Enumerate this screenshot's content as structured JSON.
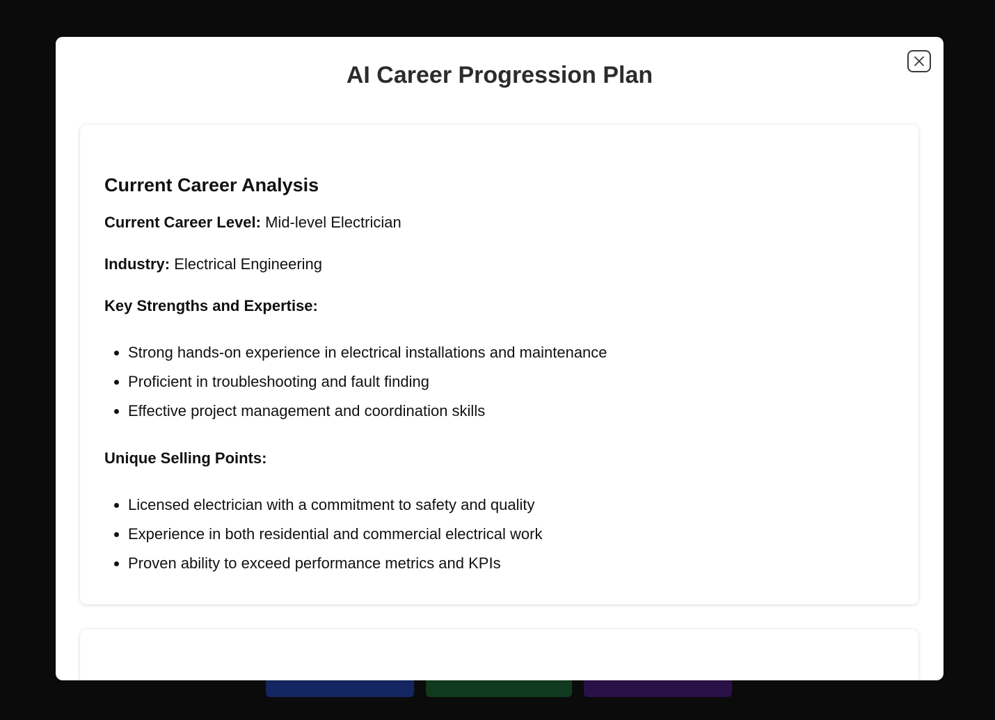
{
  "modal": {
    "title": "AI Career Progression Plan",
    "close_icon": "close-icon"
  },
  "analysis": {
    "heading": "Current Career Analysis",
    "current_level_label": "Current Career Level:",
    "current_level_value": "Mid-level Electrician",
    "industry_label": "Industry:",
    "industry_value": "Electrical Engineering",
    "strengths_heading": "Key Strengths and Expertise:",
    "strengths": [
      "Strong hands-on experience in electrical installations and maintenance",
      "Proficient in troubleshooting and fault finding",
      "Effective project management and coordination skills"
    ],
    "usp_heading": "Unique Selling Points:",
    "usps": [
      "Licensed electrician with a commitment to safety and quality",
      "Experience in both residential and commercial electrical work",
      "Proven ability to exceed performance metrics and KPIs"
    ]
  },
  "colors": {
    "backdrop": "#0b0b0b",
    "modal_bg": "#ffffff",
    "title_text": "#2c2c2c",
    "bg_button_blue": "#14296a",
    "bg_button_green": "#0f3f1f",
    "bg_button_purple": "#2d124f"
  }
}
